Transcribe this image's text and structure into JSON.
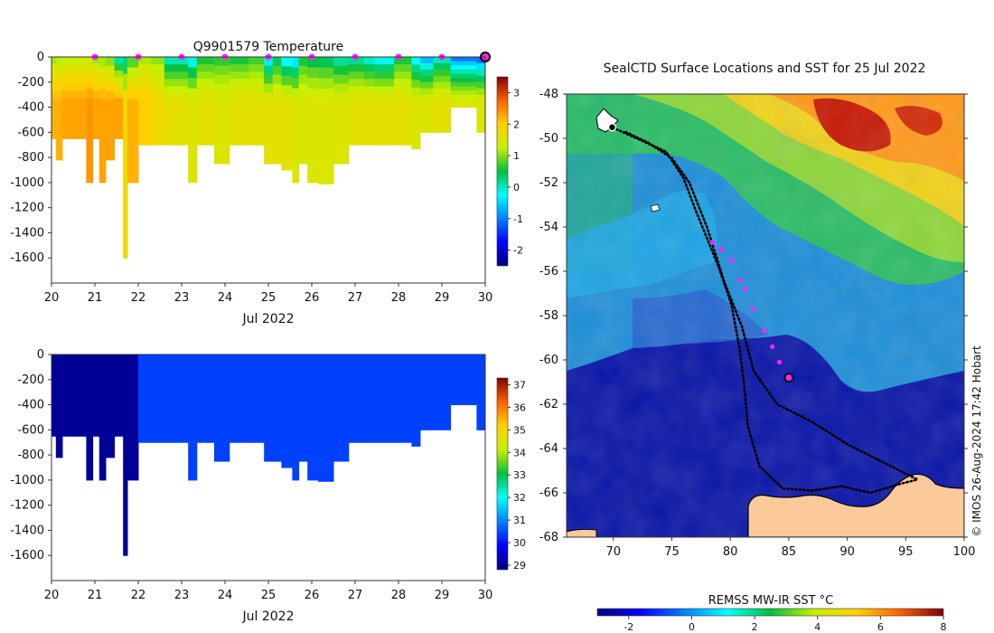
{
  "chart_data": [
    {
      "type": "heatmap",
      "title": "Q9901579  Temperature",
      "xlabel": "Jul 2022",
      "ylabel": "",
      "x_ticks": [
        "20",
        "21",
        "22",
        "23",
        "24",
        "25",
        "26",
        "27",
        "28",
        "29",
        "30"
      ],
      "y_ticks": [
        "0",
        "-200",
        "-400",
        "-600",
        "-800",
        "-1000",
        "-1200",
        "-1400",
        "-1600"
      ],
      "xlim": [
        20,
        30
      ],
      "ylim": [
        -1800,
        0
      ],
      "colorbar": {
        "min": -2.5,
        "max": 3.5,
        "ticks": [
          "3",
          "2",
          "1",
          "0",
          "-1",
          "-2"
        ]
      },
      "surface_markers_day": [
        21,
        22,
        23,
        24,
        25,
        26,
        27,
        28,
        29
      ],
      "last_profile_day": 30,
      "profiles": [
        {
          "day": 20.0,
          "depth": 650,
          "surf": 0.8,
          "deep": 2.2
        },
        {
          "day": 20.1,
          "depth": 820,
          "surf": 0.9,
          "deep": 2.2
        },
        {
          "day": 20.25,
          "depth": 650,
          "surf": 1.0,
          "deep": 2.3
        },
        {
          "day": 20.55,
          "depth": 650,
          "surf": 1.0,
          "deep": 2.3
        },
        {
          "day": 20.8,
          "depth": 1000,
          "surf": 1.0,
          "deep": 2.4
        },
        {
          "day": 20.95,
          "depth": 650,
          "surf": 0.8,
          "deep": 2.3
        },
        {
          "day": 21.1,
          "depth": 1000,
          "surf": 0.7,
          "deep": 2.3
        },
        {
          "day": 21.25,
          "depth": 820,
          "surf": 0.6,
          "deep": 2.3
        },
        {
          "day": 21.45,
          "depth": 650,
          "surf": -0.5,
          "deep": 2.3
        },
        {
          "day": 21.65,
          "depth": 1600,
          "surf": -0.6,
          "deep": 1.8
        },
        {
          "day": 21.75,
          "depth": 1000,
          "surf": 0.3,
          "deep": 2.2
        },
        {
          "day": 22.0,
          "depth": 700,
          "surf": 0.9,
          "deep": 2.0
        },
        {
          "day": 22.3,
          "depth": 700,
          "surf": 0.8,
          "deep": 1.8
        },
        {
          "day": 22.6,
          "depth": 700,
          "surf": -0.4,
          "deep": 1.6
        },
        {
          "day": 23.15,
          "depth": 1000,
          "surf": -0.8,
          "deep": 1.5
        },
        {
          "day": 23.35,
          "depth": 700,
          "surf": 0.3,
          "deep": 1.6
        },
        {
          "day": 23.75,
          "depth": 850,
          "surf": 0.4,
          "deep": 1.5
        },
        {
          "day": 24.1,
          "depth": 700,
          "surf": 0.3,
          "deep": 1.6
        },
        {
          "day": 24.55,
          "depth": 700,
          "surf": 0.5,
          "deep": 1.6
        },
        {
          "day": 24.9,
          "depth": 850,
          "surf": -1.0,
          "deep": 1.6
        },
        {
          "day": 25.1,
          "depth": 850,
          "surf": 0.0,
          "deep": 1.6
        },
        {
          "day": 25.3,
          "depth": 900,
          "surf": -0.9,
          "deep": 1.6
        },
        {
          "day": 25.55,
          "depth": 1000,
          "surf": -1.1,
          "deep": 1.5
        },
        {
          "day": 25.7,
          "depth": 850,
          "surf": 0.3,
          "deep": 1.5
        },
        {
          "day": 25.9,
          "depth": 1000,
          "surf": 0.1,
          "deep": 1.5
        },
        {
          "day": 26.15,
          "depth": 1010,
          "surf": 0.0,
          "deep": 1.5
        },
        {
          "day": 26.5,
          "depth": 850,
          "surf": -0.3,
          "deep": 1.5
        },
        {
          "day": 26.85,
          "depth": 700,
          "surf": -0.2,
          "deep": 1.6
        },
        {
          "day": 27.2,
          "depth": 700,
          "surf": -0.5,
          "deep": 1.6
        },
        {
          "day": 27.45,
          "depth": 700,
          "surf": -0.7,
          "deep": 1.6
        },
        {
          "day": 27.9,
          "depth": 700,
          "surf": 0.3,
          "deep": 1.6
        },
        {
          "day": 28.3,
          "depth": 730,
          "surf": -0.8,
          "deep": 1.5
        },
        {
          "day": 28.5,
          "depth": 600,
          "surf": -1.2,
          "deep": 1.5
        },
        {
          "day": 28.8,
          "depth": 600,
          "surf": -0.4,
          "deep": 1.6
        },
        {
          "day": 29.2,
          "depth": 400,
          "surf": -1.5,
          "deep": 1.5
        },
        {
          "day": 29.8,
          "depth": 600,
          "surf": -1.7,
          "deep": 1.5
        },
        {
          "day": 30.0,
          "depth": 500,
          "surf": -2.0,
          "deep": 1.6
        }
      ]
    },
    {
      "type": "heatmap",
      "title": "",
      "xlabel": "Jul 2022",
      "ylabel": "",
      "x_ticks": [
        "20",
        "21",
        "22",
        "23",
        "24",
        "25",
        "26",
        "27",
        "28",
        "29",
        "30"
      ],
      "y_ticks": [
        "0",
        "-200",
        "-400",
        "-600",
        "-800",
        "-1000",
        "-1200",
        "-1400",
        "-1600"
      ],
      "xlim": [
        20,
        30
      ],
      "ylim": [
        -1800,
        0
      ],
      "colorbar": {
        "min": 28.8,
        "max": 37.3,
        "ticks": [
          "37",
          "36",
          "35",
          "34",
          "33",
          "32",
          "31",
          "30",
          "29"
        ]
      },
      "note": "salinity-like field; early profiles low, later uniform mid value"
    },
    {
      "type": "heatmap",
      "title": "SealCTD Surface Locations and SST for 25 Jul 2022",
      "x_ticks": [
        "70",
        "75",
        "80",
        "85",
        "90",
        "95",
        "100"
      ],
      "y_ticks": [
        "-48",
        "-50",
        "-52",
        "-54",
        "-56",
        "-58",
        "-60",
        "-62",
        "-64",
        "-66",
        "-68"
      ],
      "xlim": [
        66,
        100
      ],
      "ylim": [
        -68,
        -48
      ],
      "colorbar_label": "REMSS MW-IR SST °C",
      "colorbar": {
        "min": -3,
        "max": 8,
        "ticks": [
          "-2",
          "0",
          "2",
          "4",
          "6",
          "8"
        ]
      },
      "recent_positions": [
        {
          "lon": 78.5,
          "lat": -54.7
        },
        {
          "lon": 79.2,
          "lat": -55.0
        },
        {
          "lon": 80.1,
          "lat": -55.5
        },
        {
          "lon": 80.8,
          "lat": -56.4
        },
        {
          "lon": 81.3,
          "lat": -56.8
        },
        {
          "lon": 81.9,
          "lat": -57.7
        },
        {
          "lon": 82.9,
          "lat": -58.7
        },
        {
          "lon": 83.6,
          "lat": -59.4
        },
        {
          "lon": 84.2,
          "lat": -60.1
        }
      ],
      "current_position": {
        "lon": 85.0,
        "lat": -60.8
      },
      "start_position": {
        "lon": 69.9,
        "lat": -49.5
      }
    }
  ],
  "credit": "© IMOS 26-Aug-2024 17:42 Hobart"
}
